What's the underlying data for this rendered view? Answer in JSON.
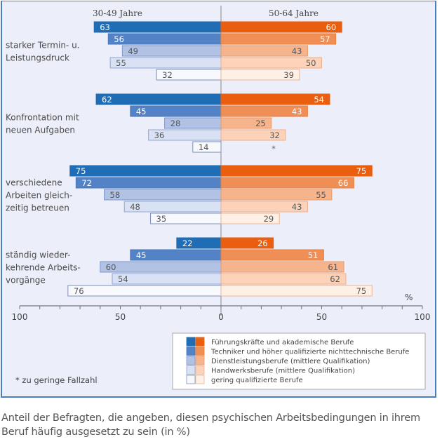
{
  "chart_data": {
    "type": "bar",
    "orientation": "horizontal-butterfly",
    "title": "",
    "caption": "Anteil der Befragten, die angeben, diesen psychischen Arbeitsbedingungen in ihrem Beruf häufig ausgesetzt zu sein (in %)",
    "left_group": "30-49 Jahre",
    "right_group": "50-64 Jahre",
    "unit_label": "%",
    "xlim": [
      0,
      100
    ],
    "xticks": [
      100,
      50,
      0,
      50,
      100
    ],
    "grid": false,
    "legend_position": "bottom-right",
    "footnote": "* zu geringe Fallzahl",
    "categories": [
      {
        "label_lines": [
          "starker Termin- u.",
          "Leistungsdruck"
        ]
      },
      {
        "label_lines": [
          "Konfrontation mit",
          "neuen Aufgaben"
        ]
      },
      {
        "label_lines": [
          "verschiedene",
          "Arbeiten gleich-",
          "zeitig betreuen"
        ]
      },
      {
        "label_lines": [
          "ständig wieder-",
          "kehrende Arbeits-",
          "vorgänge"
        ]
      }
    ],
    "series": [
      {
        "name": "Führungskräfte und akademische Berufe",
        "color_left": "#1f6db5",
        "color_right": "#e95e0f",
        "left": [
          63,
          62,
          75,
          22
        ],
        "right": [
          60,
          54,
          75,
          26
        ]
      },
      {
        "name": "Techniker und höher qualifizierte nichttechnische Berufe",
        "color_left": "#5383c6",
        "color_right": "#ef8e55",
        "left": [
          56,
          45,
          72,
          45
        ],
        "right": [
          57,
          43,
          66,
          51
        ]
      },
      {
        "name": "Dienstleistungsberufe (mittlere Qualifikation)",
        "color_left": "#b1c2e5",
        "color_right": "#f6b48d",
        "left": [
          49,
          28,
          58,
          60
        ],
        "right": [
          43,
          25,
          55,
          61
        ]
      },
      {
        "name": "Handwerksberufe (mittlere Qualifikation)",
        "color_left": "#d9e1f4",
        "color_right": "#fcd3b8",
        "left": [
          55,
          36,
          48,
          54
        ],
        "right": [
          50,
          32,
          43,
          62
        ]
      },
      {
        "name": "gering qualifizierte Berufe",
        "color_left": "#f7f9fd",
        "color_right": "#fff0e5",
        "left": [
          32,
          14,
          35,
          76
        ],
        "right": [
          39,
          null,
          29,
          75
        ]
      }
    ],
    "missing_marker": "*"
  }
}
